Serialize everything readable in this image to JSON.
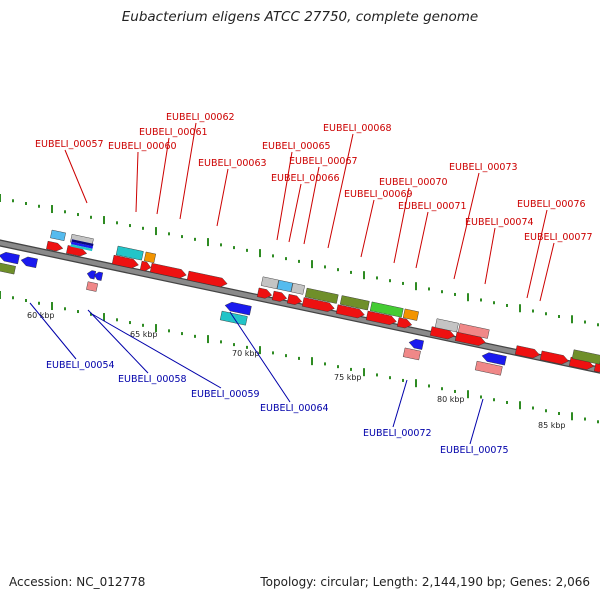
{
  "title": "Eubacterium eligens ATCC 27750, complete genome",
  "footer": {
    "accession": "Accession: NC_012778",
    "stats": "Topology: circular; Length: 2,144,190 bp; Genes: 2,066"
  },
  "colors": {
    "backbone": "#8a8a8a",
    "backbone_outline": "#444444",
    "tick": "#2e8b22",
    "label_top": "#cc0000",
    "label_bottom": "#0000aa",
    "red": "#ee1111",
    "blue": "#1a1aee",
    "cyan": "#22c4c8",
    "olive": "#6f8f2a",
    "green": "#44cc33",
    "orange": "#f29400",
    "pink": "#f08888",
    "gray": "#c4c4c4",
    "lightblue": "#55bbee",
    "navy": "#0a0a80"
  },
  "scale": {
    "unit": "kbp",
    "labels": [
      "60 kbp",
      "65 kbp",
      "70 kbp",
      "75 kbp",
      "80 kbp",
      "85 kbp"
    ]
  },
  "genes_top": [
    {
      "label": "EUBELI_00057"
    },
    {
      "label": "EUBELI_00060"
    },
    {
      "label": "EUBELI_00061"
    },
    {
      "label": "EUBELI_00062"
    },
    {
      "label": "EUBELI_00063"
    },
    {
      "label": "EUBELI_00065"
    },
    {
      "label": "EUBELI_00066"
    },
    {
      "label": "EUBELI_00067"
    },
    {
      "label": "EUBELI_00068"
    },
    {
      "label": "EUBELI_00069"
    },
    {
      "label": "EUBELI_00070"
    },
    {
      "label": "EUBELI_00071"
    },
    {
      "label": "EUBELI_00073"
    },
    {
      "label": "EUBELI_00074"
    },
    {
      "label": "EUBELI_00076"
    },
    {
      "label": "EUBELI_00077"
    }
  ],
  "genes_bottom": [
    {
      "label": "EUBELI_00054"
    },
    {
      "label": "EUBELI_00058"
    },
    {
      "label": "EUBELI_00059"
    },
    {
      "label": "EUBELI_00064"
    },
    {
      "label": "EUBELI_00072"
    },
    {
      "label": "EUBELI_00075"
    }
  ]
}
